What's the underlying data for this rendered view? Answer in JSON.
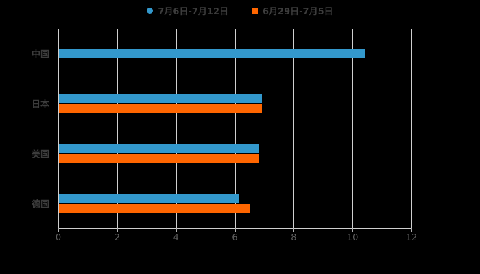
{
  "chart_data": {
    "type": "bar",
    "orientation": "horizontal",
    "title": "",
    "categories": [
      "中国",
      "日本",
      "美国",
      "德国"
    ],
    "series": [
      {
        "name": "7月6日-7月12日",
        "color": "#3398CC",
        "marker": "circle",
        "values": [
          10.4,
          6.9,
          6.8,
          6.1
        ]
      },
      {
        "name": "6月29日-7月5日",
        "color": "#FF6600",
        "marker": "square",
        "values": [
          null,
          6.9,
          6.8,
          6.5
        ]
      }
    ],
    "xlabel": "",
    "ylabel": "",
    "xlim": [
      0,
      12
    ],
    "x_ticks": [
      "0",
      "2",
      "4",
      "6",
      "8",
      "10",
      "12"
    ],
    "grid": true,
    "legend_position": "top",
    "background_color": "#000000",
    "grid_color": "#cfcfcf",
    "category_label_color": "#3c3c3c",
    "tick_label_color": "#5e5e5e"
  }
}
